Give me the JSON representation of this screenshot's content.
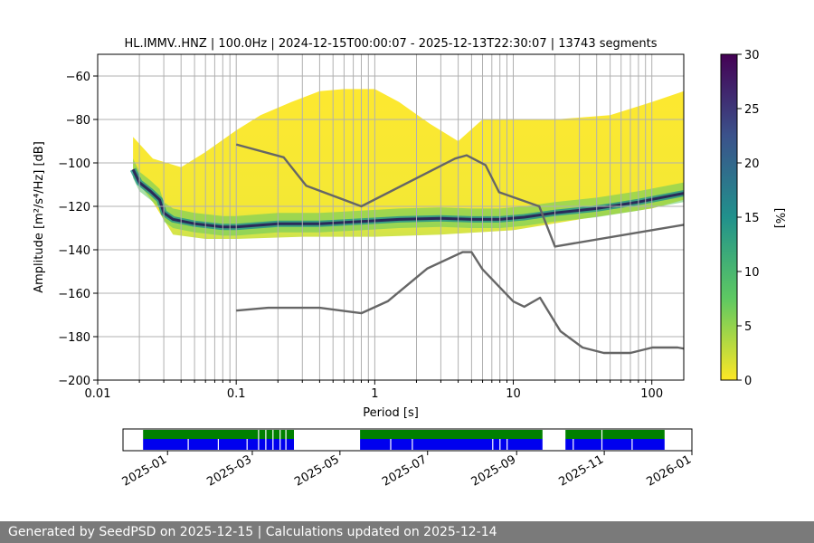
{
  "footer_text": "Generated by SeedPSD on 2025-12-15 | Calculations updated on 2025-12-14",
  "chart_data": [
    {
      "type": "heatmap",
      "title": "HL.IMMV..HNZ | 100.0Hz | 2024-12-15T00:00:07 - 2025-12-13T22:30:07 | 13743 segments",
      "xlabel": "Period [s]",
      "ylabel": "Amplitude [m²/s⁴/Hz] [dB]",
      "xscale": "log",
      "xlim": [
        0.01,
        170
      ],
      "ylim": [
        -200,
        -50
      ],
      "x_ticks": [
        {
          "value": 0.01,
          "label": "0.01"
        },
        {
          "value": 0.1,
          "label": "0.1"
        },
        {
          "value": 1,
          "label": "1"
        },
        {
          "value": 10,
          "label": "10"
        },
        {
          "value": 100,
          "label": "100"
        }
      ],
      "y_ticks": [
        {
          "value": -60,
          "label": "−60"
        },
        {
          "value": -80,
          "label": "−80"
        },
        {
          "value": -100,
          "label": "−100"
        },
        {
          "value": -120,
          "label": "−120"
        },
        {
          "value": -140,
          "label": "−140"
        },
        {
          "value": -160,
          "label": "−160"
        },
        {
          "value": -180,
          "label": "−180"
        },
        {
          "value": -200,
          "label": "−200"
        }
      ],
      "grid": true,
      "colorbar": {
        "label": "[%]",
        "range": [
          0,
          30
        ],
        "ticks": [
          {
            "value": 0,
            "label": "0"
          },
          {
            "value": 5,
            "label": "5"
          },
          {
            "value": 10,
            "label": "10"
          },
          {
            "value": 15,
            "label": "15"
          },
          {
            "value": 20,
            "label": "20"
          },
          {
            "value": 25,
            "label": "25"
          },
          {
            "value": 30,
            "label": "30"
          }
        ],
        "colors": [
          "#fde725",
          "#5ec962",
          "#21918c",
          "#3b528b",
          "#440154"
        ]
      },
      "mode_curve": {
        "color": "#2a2a5a",
        "x": [
          0.018,
          0.02,
          0.024,
          0.028,
          0.03,
          0.035,
          0.05,
          0.08,
          0.1,
          0.2,
          0.4,
          0.8,
          1.5,
          3,
          5,
          8,
          12,
          20,
          40,
          80,
          170
        ],
        "y": [
          -103,
          -109,
          -113,
          -117,
          -123,
          -126,
          -128,
          -129.5,
          -129.5,
          -128,
          -128,
          -127,
          -126,
          -125.5,
          -126,
          -126,
          -125,
          -123,
          -121,
          -118,
          -114
        ]
      },
      "upper_envelope": {
        "x": [
          0.018,
          0.025,
          0.04,
          0.06,
          0.1,
          0.15,
          0.25,
          0.4,
          0.6,
          1,
          1.5,
          2.5,
          4,
          6,
          10,
          20,
          50,
          100,
          170
        ],
        "y": [
          -88,
          -98,
          -102,
          -95,
          -85,
          -78,
          -72,
          -67,
          -66,
          -66,
          -72,
          -82,
          -90,
          -80,
          -80,
          -80,
          -78,
          -72,
          -67
        ]
      },
      "lower_envelope": {
        "x": [
          0.018,
          0.025,
          0.035,
          0.06,
          0.1,
          0.3,
          1,
          3,
          10,
          30,
          100,
          170
        ],
        "y": [
          -106,
          -118,
          -133,
          -135,
          -135,
          -134,
          -134,
          -133,
          -131,
          -126,
          -121,
          -117
        ]
      },
      "nhnm": {
        "color": "#666666",
        "x": [
          0.1,
          0.22,
          0.32,
          0.8,
          3.8,
          4.6,
          6.3,
          7.9,
          15.4,
          20,
          170
        ],
        "y": [
          -91.5,
          -97.4,
          -110.5,
          -120,
          -98,
          -96.5,
          -101,
          -113.5,
          -120,
          -138.5,
          -128.5
        ]
      },
      "nlnm": {
        "color": "#666666",
        "x": [
          0.1,
          0.17,
          0.4,
          0.8,
          1.24,
          2.4,
          4.3,
          5,
          6,
          10,
          12,
          15.6,
          21.9,
          31.6,
          45,
          70,
          101,
          154,
          170
        ],
        "y": [
          -168,
          -166.7,
          -166.7,
          -169.2,
          -163.7,
          -148.6,
          -141.1,
          -141.1,
          -149,
          -163.8,
          -166.2,
          -162.1,
          -177.5,
          -185,
          -187.5,
          -187.5,
          -185,
          -185,
          -185.5
        ]
      }
    },
    {
      "type": "bar",
      "description_note": "",
      "xlim": [
        "2024-12-01",
        "2026-01-01"
      ],
      "x_ticks": [
        {
          "value": "2025-01-01",
          "label": "2025-01"
        },
        {
          "value": "2025-03-01",
          "label": "2025-03"
        },
        {
          "value": "2025-05-01",
          "label": "2025-05"
        },
        {
          "value": "2025-07-01",
          "label": "2025-07"
        },
        {
          "value": "2025-09-01",
          "label": "2025-09"
        },
        {
          "value": "2025-11-01",
          "label": "2025-11"
        },
        {
          "value": "2026-01-01",
          "label": "2026-01"
        }
      ],
      "series": [
        {
          "color": "#008000",
          "spans": [
            [
              "2024-12-15",
              "2025-03-30"
            ],
            [
              "2025-05-15",
              "2025-09-19"
            ],
            [
              "2025-10-05",
              "2025-12-13"
            ]
          ],
          "gaps": [
            "2025-03-05",
            "2025-03-10",
            "2025-03-15",
            "2025-03-20",
            "2025-03-24",
            "2025-09-24",
            "2025-10-30"
          ]
        },
        {
          "color": "#0000ee",
          "spans": [
            [
              "2024-12-15",
              "2025-03-30"
            ],
            [
              "2025-05-15",
              "2025-09-19"
            ],
            [
              "2025-10-05",
              "2025-12-13"
            ]
          ],
          "gaps": [
            "2025-01-15",
            "2025-02-05",
            "2025-02-25",
            "2025-03-05",
            "2025-03-10",
            "2025-03-15",
            "2025-03-20",
            "2025-03-24",
            "2025-06-05",
            "2025-06-20",
            "2025-08-15",
            "2025-08-20",
            "2025-08-25",
            "2025-09-24",
            "2025-10-10",
            "2025-10-30",
            "2025-11-20"
          ]
        }
      ]
    }
  ]
}
